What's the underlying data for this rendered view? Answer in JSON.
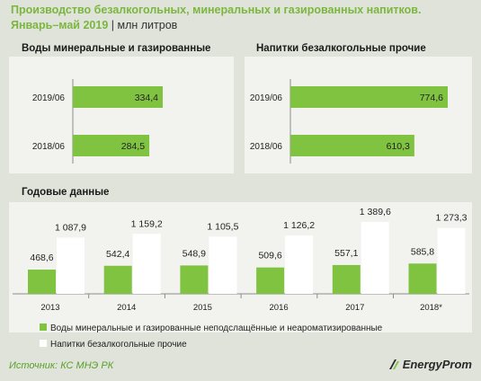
{
  "header": {
    "title_line1": "Производство безалкогольных, минеральных и газированных напитков.",
    "title_line2": "Январь–май 2019",
    "unit": "млн литров"
  },
  "source": "Источник: КС МНЭ РК",
  "logo": "EnergyProm",
  "colors": {
    "green": "#80c341",
    "white": "#ffffff",
    "panel": "#f2f3ef",
    "title": "#7bb73e"
  },
  "chart_data": [
    {
      "type": "bar",
      "orientation": "horizontal",
      "title": "Воды минеральные  и газированные",
      "categories": [
        "2019/06",
        "2018/06"
      ],
      "values": [
        334.4,
        284.5
      ],
      "value_labels": [
        "334,4",
        "284,5"
      ]
    },
    {
      "type": "bar",
      "orientation": "horizontal",
      "title": "Напитки  безалкогольные  прочие",
      "categories": [
        "2019/06",
        "2018/06"
      ],
      "values": [
        774.6,
        610.3
      ],
      "value_labels": [
        "774,6",
        "610,3"
      ]
    },
    {
      "type": "bar",
      "title": "Годовые данные",
      "categories": [
        "2013",
        "2014",
        "2015",
        "2016",
        "2017",
        "2018*"
      ],
      "series": [
        {
          "name": "Воды минеральные и газированные неподслащённые и неароматизированные",
          "values": [
            468.6,
            542.4,
            548.9,
            509.6,
            557.1,
            585.8
          ],
          "value_labels": [
            "468,6",
            "542,4",
            "548,9",
            "509,6",
            "557,1",
            "585,8"
          ]
        },
        {
          "name": "Напитки безалкогольные прочие",
          "values": [
            1087.9,
            1159.2,
            1105.5,
            1126.2,
            1389.6,
            1273.3
          ],
          "value_labels": [
            "1 087,9",
            "1 159,2",
            "1 105,5",
            "1 126,2",
            "1 389,6",
            "1 273,3"
          ]
        }
      ],
      "legend_position": "bottom"
    }
  ]
}
